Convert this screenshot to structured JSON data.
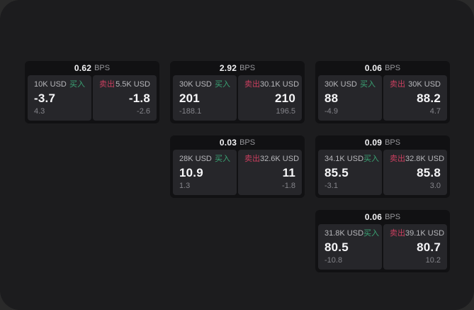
{
  "labels": {
    "bps_unit": "BPS",
    "buy": "买入",
    "sell": "卖出"
  },
  "colors": {
    "window_bg": "#1c1c1e",
    "card_bg": "#111113",
    "panel_bg": "#26262a",
    "buy_green": "#3aa374",
    "sell_red": "#ca3f5f",
    "price_white": "#f6f6f8",
    "muted_gray": "#84848a"
  },
  "cards": [
    {
      "bps_value": "0.62",
      "buy": {
        "size": "10K USD",
        "price": "-3.7",
        "sub": "4.3"
      },
      "sell": {
        "size": "5.5K USD",
        "price": "-1.8",
        "sub": "-2.6"
      }
    },
    {
      "bps_value": "2.92",
      "buy": {
        "size": "30K USD",
        "price": "201",
        "sub": "-188.1"
      },
      "sell": {
        "size": "30.1K USD",
        "price": "210",
        "sub": "196.5"
      }
    },
    {
      "bps_value": "0.06",
      "buy": {
        "size": "30K USD",
        "price": "88",
        "sub": "-4.9"
      },
      "sell": {
        "size": "30K USD",
        "price": "88.2",
        "sub": "4.7"
      }
    },
    {
      "bps_value": "0.03",
      "buy": {
        "size": "28K USD",
        "price": "10.9",
        "sub": "1.3"
      },
      "sell": {
        "size": "32.6K USD",
        "price": "11",
        "sub": "-1.8"
      }
    },
    {
      "bps_value": "0.09",
      "buy": {
        "size": "34.1K USD",
        "price": "85.5",
        "sub": "-3.1"
      },
      "sell": {
        "size": "32.8K USD",
        "price": "85.8",
        "sub": "3.0"
      }
    },
    {
      "bps_value": "0.06",
      "buy": {
        "size": "31.8K USD",
        "price": "80.5",
        "sub": "-10.8"
      },
      "sell": {
        "size": "39.1K USD",
        "price": "80.7",
        "sub": "10.2"
      }
    }
  ]
}
